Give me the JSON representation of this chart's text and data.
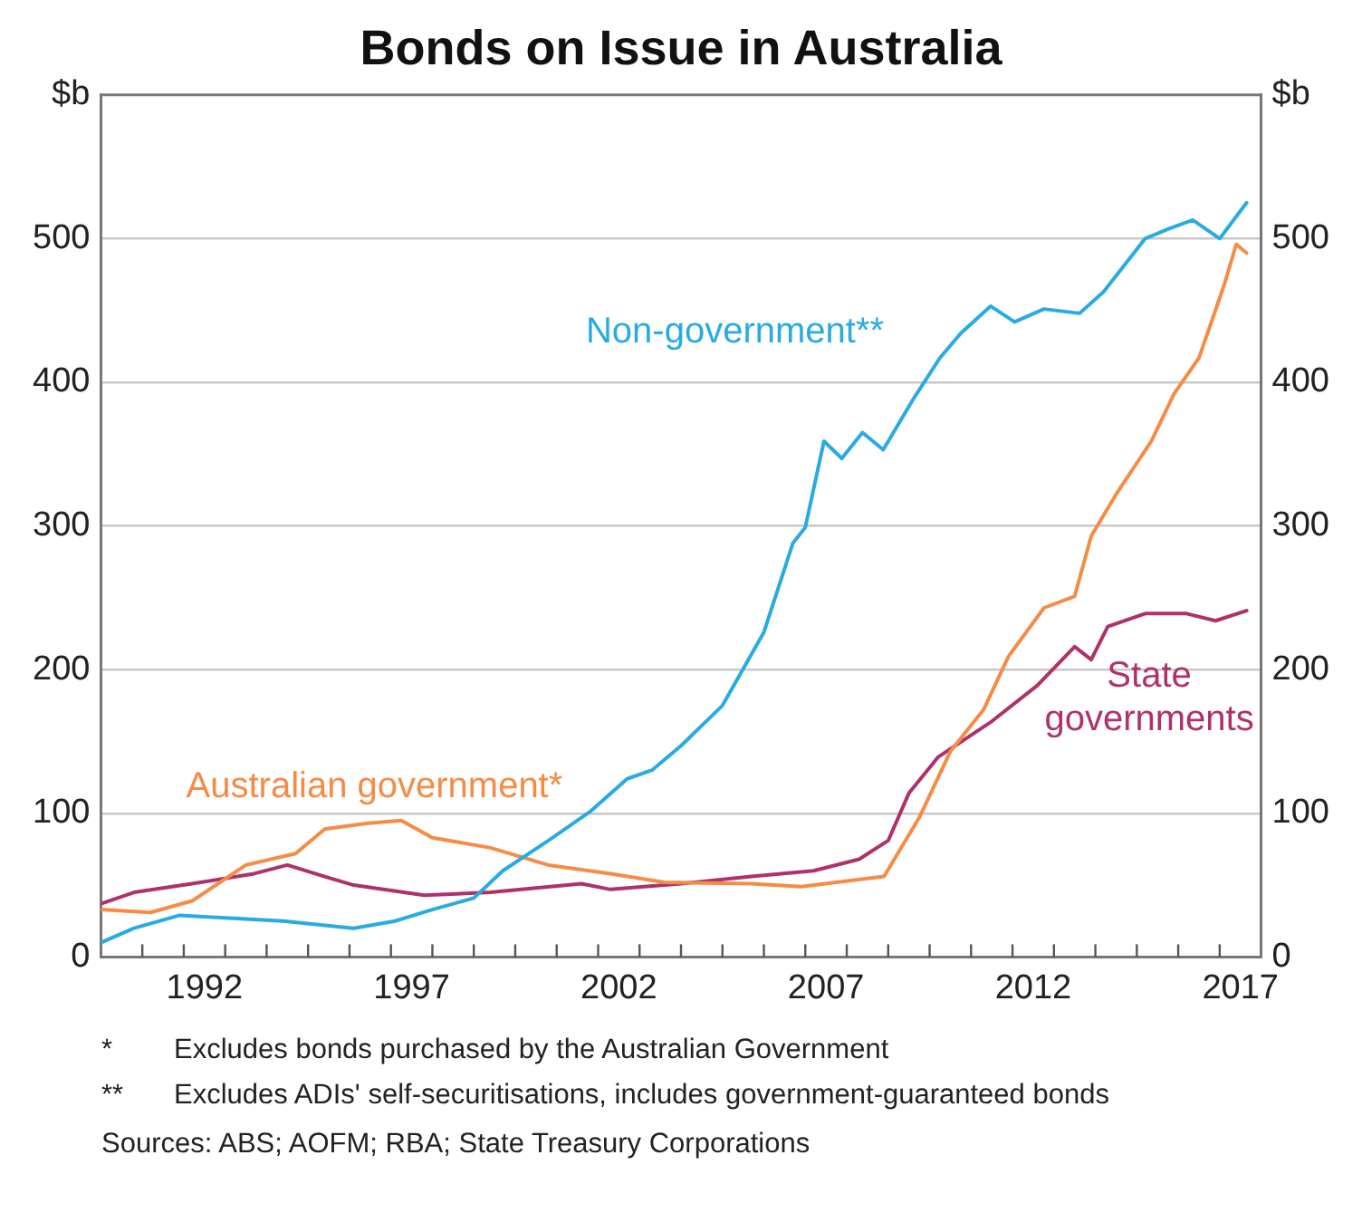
{
  "chart_data": {
    "type": "line",
    "title": "Bonds on Issue in Australia",
    "xlim": [
      1990,
      2018
    ],
    "xticks": [
      {
        "value": 1991,
        "label": null
      },
      {
        "value": 1992,
        "label": null
      },
      {
        "value": 1992.5,
        "label": "1992"
      },
      {
        "value": 1993,
        "label": null
      },
      {
        "value": 1994,
        "label": null
      },
      {
        "value": 1995,
        "label": null
      },
      {
        "value": 1996,
        "label": null
      },
      {
        "value": 1997,
        "label": null
      },
      {
        "value": 1997.5,
        "label": "1997"
      },
      {
        "value": 1998,
        "label": null
      },
      {
        "value": 1999,
        "label": null
      },
      {
        "value": 2000,
        "label": null
      },
      {
        "value": 2001,
        "label": null
      },
      {
        "value": 2002,
        "label": null
      },
      {
        "value": 2002.5,
        "label": "2002"
      },
      {
        "value": 2003,
        "label": null
      },
      {
        "value": 2004,
        "label": null
      },
      {
        "value": 2005,
        "label": null
      },
      {
        "value": 2006,
        "label": null
      },
      {
        "value": 2007,
        "label": null
      },
      {
        "value": 2007.5,
        "label": "2007"
      },
      {
        "value": 2008,
        "label": null
      },
      {
        "value": 2009,
        "label": null
      },
      {
        "value": 2010,
        "label": null
      },
      {
        "value": 2011,
        "label": null
      },
      {
        "value": 2012,
        "label": null
      },
      {
        "value": 2012.5,
        "label": "2012"
      },
      {
        "value": 2013,
        "label": null
      },
      {
        "value": 2014,
        "label": null
      },
      {
        "value": 2015,
        "label": null
      },
      {
        "value": 2016,
        "label": null
      },
      {
        "value": 2017,
        "label": null
      },
      {
        "value": 2017.5,
        "label": "2017"
      }
    ],
    "ylim": [
      0,
      600
    ],
    "yticks": [
      0,
      100,
      200,
      300,
      400,
      500,
      {
        "value": 600,
        "label": "$b"
      }
    ],
    "y2lim": [
      0,
      600
    ],
    "y2ticks": [
      0,
      100,
      200,
      300,
      400,
      500,
      {
        "value": 600,
        "label": "$b"
      }
    ],
    "grid": "y",
    "legend": false,
    "marker": "none",
    "line_style": "solid",
    "series": [
      {
        "name": "Non-government**",
        "color": "#29abe2",
        "x": [
          1990.0,
          1990.8,
          1991.9,
          1993.1,
          1994.4,
          1996.1,
          1997.1,
          1998.0,
          1999.0,
          1999.7,
          2000.8,
          2001.8,
          2002.7,
          2003.3,
          2004.0,
          2005.0,
          2006.0,
          2006.7,
          2007.0,
          2007.45,
          2007.88,
          2008.38,
          2008.88,
          2009.6,
          2010.25,
          2010.75,
          2011.47,
          2012.05,
          2012.76,
          2013.62,
          2014.2,
          2015.2,
          2015.78,
          2016.35,
          2017.0,
          2017.65
        ],
        "values": [
          10,
          20,
          29,
          27,
          25,
          20,
          25,
          33,
          41,
          60,
          81,
          101,
          124,
          130,
          147,
          175,
          226,
          288,
          299,
          359,
          347,
          365,
          353,
          388,
          417,
          434,
          453,
          442,
          451,
          448,
          463,
          500,
          507,
          513,
          500,
          525
        ]
      },
      {
        "name": "Australian government*",
        "color": "#f68b45",
        "x": [
          1990.0,
          1991.2,
          1992.2,
          1993.5,
          1994.7,
          1995.4,
          1996.4,
          1997.25,
          1998.0,
          1999.4,
          2000.8,
          2002.3,
          2003.6,
          2005.7,
          2006.9,
          2008.9,
          2009.75,
          2010.5,
          2011.3,
          2011.9,
          2012.76,
          2013.5,
          2013.9,
          2014.5,
          2015.35,
          2015.9,
          2016.5,
          2017.1,
          2017.4,
          2017.65
        ],
        "values": [
          33,
          31,
          39,
          64,
          72,
          89,
          93,
          95,
          83,
          76,
          64,
          58,
          52,
          51,
          49,
          56,
          97,
          143,
          172,
          209,
          243,
          251,
          293,
          322,
          359,
          392,
          417,
          467,
          496,
          490
        ]
      },
      {
        "name": "State governments",
        "color": "#b0316a",
        "x": [
          1990.0,
          1990.8,
          1992.2,
          1993.7,
          1994.5,
          1995.4,
          1996.1,
          1997.8,
          1999.4,
          2001.6,
          2002.3,
          2004.0,
          2005.7,
          2007.2,
          2008.3,
          2009.0,
          2009.5,
          2010.2,
          2011.5,
          2012.6,
          2013.5,
          2013.9,
          2014.3,
          2015.2,
          2016.2,
          2016.9,
          2017.65
        ],
        "values": [
          37,
          45,
          51,
          58,
          64,
          56,
          50,
          43,
          45,
          51,
          47,
          51,
          56,
          60,
          68,
          81,
          114,
          139,
          164,
          189,
          216,
          207,
          230,
          239,
          239,
          234,
          241
        ]
      }
    ],
    "annotations": [
      "*\tExcludes bonds purchased by the Australian Government",
      "**\tExcludes ADIs' self-securitisations, includes government-guaranteed bonds",
      "Sources: ABS; AOFM; RBA; State Treasury Corporations"
    ]
  }
}
